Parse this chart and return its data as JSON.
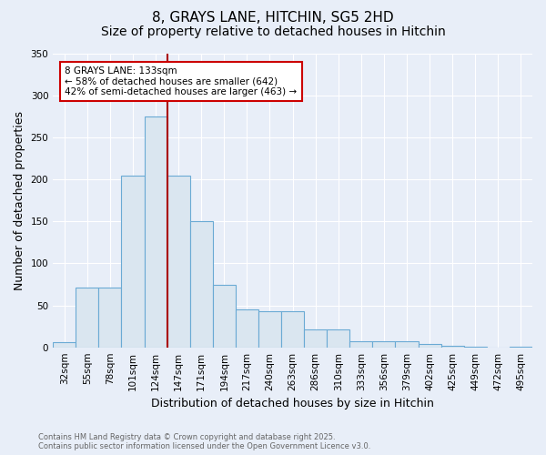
{
  "title": "8, GRAYS LANE, HITCHIN, SG5 2HD",
  "subtitle": "Size of property relative to detached houses in Hitchin",
  "xlabel": "Distribution of detached houses by size in Hitchin",
  "ylabel": "Number of detached properties",
  "bar_color": "#dae6f0",
  "bar_edge_color": "#6aaad4",
  "categories": [
    "32sqm",
    "55sqm",
    "78sqm",
    "101sqm",
    "124sqm",
    "147sqm",
    "171sqm",
    "194sqm",
    "217sqm",
    "240sqm",
    "263sqm",
    "286sqm",
    "310sqm",
    "333sqm",
    "356sqm",
    "379sqm",
    "402sqm",
    "425sqm",
    "449sqm",
    "472sqm",
    "495sqm"
  ],
  "values": [
    6,
    71,
    71,
    205,
    275,
    205,
    150,
    75,
    45,
    43,
    43,
    21,
    21,
    7,
    7,
    7,
    4,
    2,
    1,
    0,
    1
  ],
  "ylim": [
    0,
    350
  ],
  "yticks": [
    0,
    50,
    100,
    150,
    200,
    250,
    300,
    350
  ],
  "vline_color": "#aa0000",
  "annotation_text": "8 GRAYS LANE: 133sqm\n← 58% of detached houses are smaller (642)\n42% of semi-detached houses are larger (463) →",
  "footer_line1": "Contains HM Land Registry data © Crown copyright and database right 2025.",
  "footer_line2": "Contains public sector information licensed under the Open Government Licence v3.0.",
  "bg_color": "#e8eef8",
  "plot_bg_color": "#e8eef8",
  "grid_color": "#ffffff",
  "title_fontsize": 11,
  "subtitle_fontsize": 10,
  "tick_fontsize": 7.5,
  "ylabel_fontsize": 9,
  "xlabel_fontsize": 9,
  "footer_fontsize": 6,
  "footer_color": "#666666"
}
